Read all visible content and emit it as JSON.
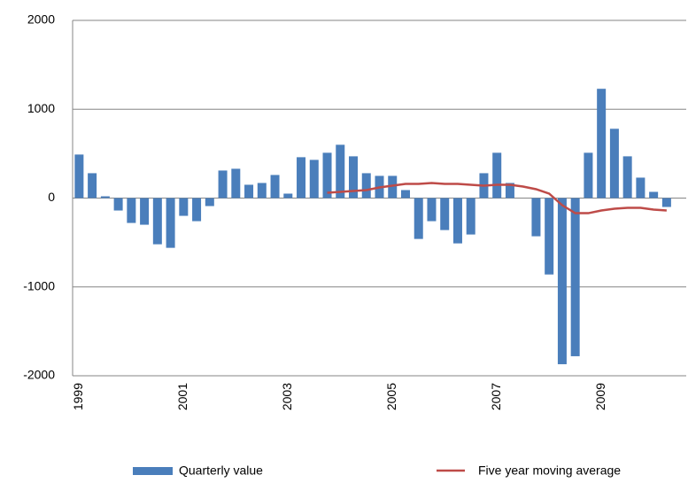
{
  "chart_data": {
    "type": "bar",
    "categories": [
      "1999",
      null,
      null,
      null,
      null,
      null,
      null,
      null,
      "2001",
      null,
      null,
      null,
      null,
      null,
      null,
      null,
      "2003",
      null,
      null,
      null,
      null,
      null,
      null,
      null,
      "2005",
      null,
      null,
      null,
      null,
      null,
      null,
      null,
      "2007",
      null,
      null,
      null,
      null,
      null,
      null,
      null,
      "2009",
      null,
      null,
      null,
      null,
      null
    ],
    "series": [
      {
        "name": "Quarterly value",
        "type": "bar",
        "color": "#4a7ebb",
        "values": [
          490,
          280,
          20,
          -140,
          -280,
          -300,
          -520,
          -560,
          -200,
          -260,
          -90,
          310,
          330,
          150,
          170,
          260,
          50,
          460,
          430,
          510,
          600,
          470,
          280,
          250,
          250,
          90,
          -460,
          -260,
          -360,
          -510,
          -410,
          280,
          510,
          170,
          0,
          -430,
          -860,
          -1870,
          -1780,
          510,
          1230,
          780,
          470,
          230,
          70,
          -100
        ]
      },
      {
        "name": "Five year moving average",
        "type": "line",
        "color": "#be4b48",
        "values": [
          null,
          null,
          null,
          null,
          null,
          null,
          null,
          null,
          null,
          null,
          null,
          null,
          null,
          null,
          null,
          null,
          null,
          null,
          null,
          60,
          70,
          80,
          90,
          120,
          140,
          160,
          160,
          170,
          160,
          160,
          150,
          140,
          150,
          150,
          130,
          100,
          50,
          -80,
          -170,
          -170,
          -140,
          -120,
          -110,
          -110,
          -130,
          -140
        ]
      }
    ],
    "ylim": [
      -2000,
      2000
    ],
    "yticks": [
      -2000,
      -1000,
      0,
      1000,
      2000
    ],
    "grid": true,
    "legend": "bottom"
  }
}
